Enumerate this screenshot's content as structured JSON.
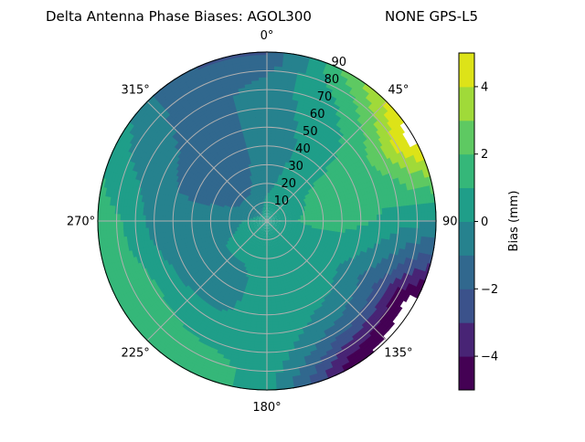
{
  "chart_data": {
    "type": "heatmap",
    "subtype": "polar-filled-contour",
    "title": "Delta Antenna Phase Biases: AGOL300",
    "title_right": "NONE GPS-L5",
    "azimuth_direction": "clockwise",
    "azimuth_zero": "top",
    "azimuth_ticks": [
      "0°",
      "45°",
      "90°",
      "135°",
      "180°",
      "225°",
      "270°",
      "315°"
    ],
    "radial_ticks": [
      "10",
      "20",
      "30",
      "40",
      "50",
      "60",
      "70",
      "80",
      "90"
    ],
    "radial_range": [
      0,
      90
    ],
    "grid": true,
    "azimuth_deg": [
      0,
      30,
      60,
      90,
      120,
      150,
      180,
      210,
      240,
      270,
      300,
      330
    ],
    "zenith_deg": [
      0,
      10,
      20,
      30,
      40,
      50,
      60,
      70,
      80,
      90
    ],
    "values_mm": [
      [
        0.5,
        0.2,
        -0.3,
        -0.5,
        -0.5,
        -0.5,
        -0.5,
        -0.6,
        -1.2,
        -2.2
      ],
      [
        0.5,
        0.5,
        0.4,
        0.3,
        0.2,
        0.3,
        0.5,
        0.8,
        1.5,
        2.5
      ],
      [
        0.5,
        0.7,
        0.9,
        1.2,
        1.4,
        1.5,
        1.8,
        2.8,
        4.5,
        5.8
      ],
      [
        0.5,
        0.8,
        1.1,
        1.3,
        1.3,
        1.2,
        0.9,
        0.5,
        0.3,
        0.0
      ],
      [
        0.5,
        0.5,
        0.5,
        0.4,
        0.3,
        -0.3,
        -1.3,
        -2.5,
        -4.5,
        -5.8
      ],
      [
        0.5,
        0.5,
        0.4,
        0.3,
        0.2,
        0.2,
        -0.3,
        -1.5,
        -3.2,
        -4.8
      ],
      [
        0.5,
        0.5,
        0.5,
        0.4,
        0.4,
        0.5,
        0.7,
        0.9,
        0.6,
        0.4
      ],
      [
        0.5,
        0.4,
        0.2,
        -0.2,
        -0.3,
        -0.2,
        0.3,
        0.8,
        1.5,
        1.9
      ],
      [
        0.5,
        0.3,
        0.1,
        -0.1,
        -0.4,
        -0.4,
        0.4,
        1.2,
        1.5,
        1.7
      ],
      [
        0.5,
        0.1,
        -0.3,
        -0.5,
        -0.6,
        -0.6,
        -0.4,
        0.5,
        1.2,
        1.5
      ],
      [
        0.5,
        -0.5,
        -1.3,
        -1.4,
        -1.4,
        -1.2,
        -0.8,
        -0.5,
        -0.2,
        0.5
      ],
      [
        0.5,
        -0.5,
        -1.2,
        -1.4,
        -1.5,
        -1.5,
        -1.5,
        -1.5,
        -1.6,
        -2.0
      ]
    ],
    "levels": [
      -5,
      -4,
      -3,
      -2,
      -1,
      0,
      1,
      2,
      3,
      4,
      5
    ],
    "level_colors": [
      "#440154",
      "#482475",
      "#3b528b",
      "#31688e",
      "#26828e",
      "#1f9e89",
      "#35b779",
      "#5ec962",
      "#a0da39",
      "#dde318"
    ],
    "colorbar": {
      "label": "Bias (mm)",
      "ticks": [
        -4,
        -2,
        0,
        2,
        4
      ],
      "tick_labels": [
        "−4",
        "−2",
        "0",
        "2",
        "4"
      ],
      "range": [
        -5,
        5
      ]
    },
    "colormap": "viridis"
  }
}
